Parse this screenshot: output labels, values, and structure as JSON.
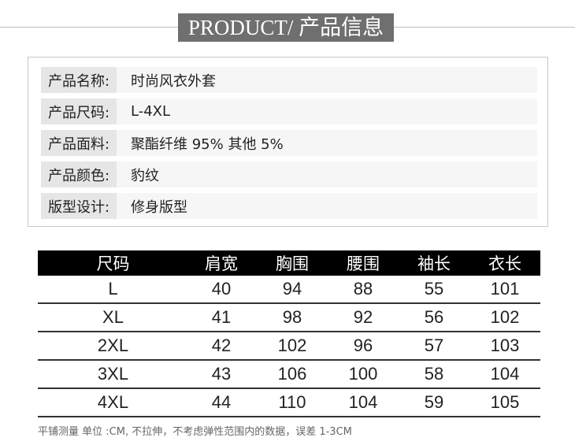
{
  "title": "PRODUCT/ 产品信息",
  "info": [
    {
      "label": "产品名称:",
      "value": "时尚风衣外套"
    },
    {
      "label": "产品尺码:",
      "value": "L-4XL"
    },
    {
      "label": "产品面料:",
      "value": "聚酯纤维 95% 其他 5%"
    },
    {
      "label": "产品颜色:",
      "value": "豹纹"
    },
    {
      "label": "版型设计:",
      "value": "修身版型"
    }
  ],
  "size_table": {
    "headers": [
      "尺码",
      "肩宽",
      "胸围",
      "腰围",
      "袖长",
      "衣长"
    ],
    "rows": [
      [
        "L",
        "40",
        "94",
        "88",
        "55",
        "101"
      ],
      [
        "XL",
        "41",
        "98",
        "92",
        "56",
        "102"
      ],
      [
        "2XL",
        "42",
        "102",
        "96",
        "57",
        "103"
      ],
      [
        "3XL",
        "43",
        "106",
        "100",
        "58",
        "104"
      ],
      [
        "4XL",
        "44",
        "110",
        "104",
        "59",
        "105"
      ]
    ]
  },
  "note": "平铺测量 单位 :CM, 不拉伸，不考虑弹性范围内的数据，误差 1-3CM"
}
